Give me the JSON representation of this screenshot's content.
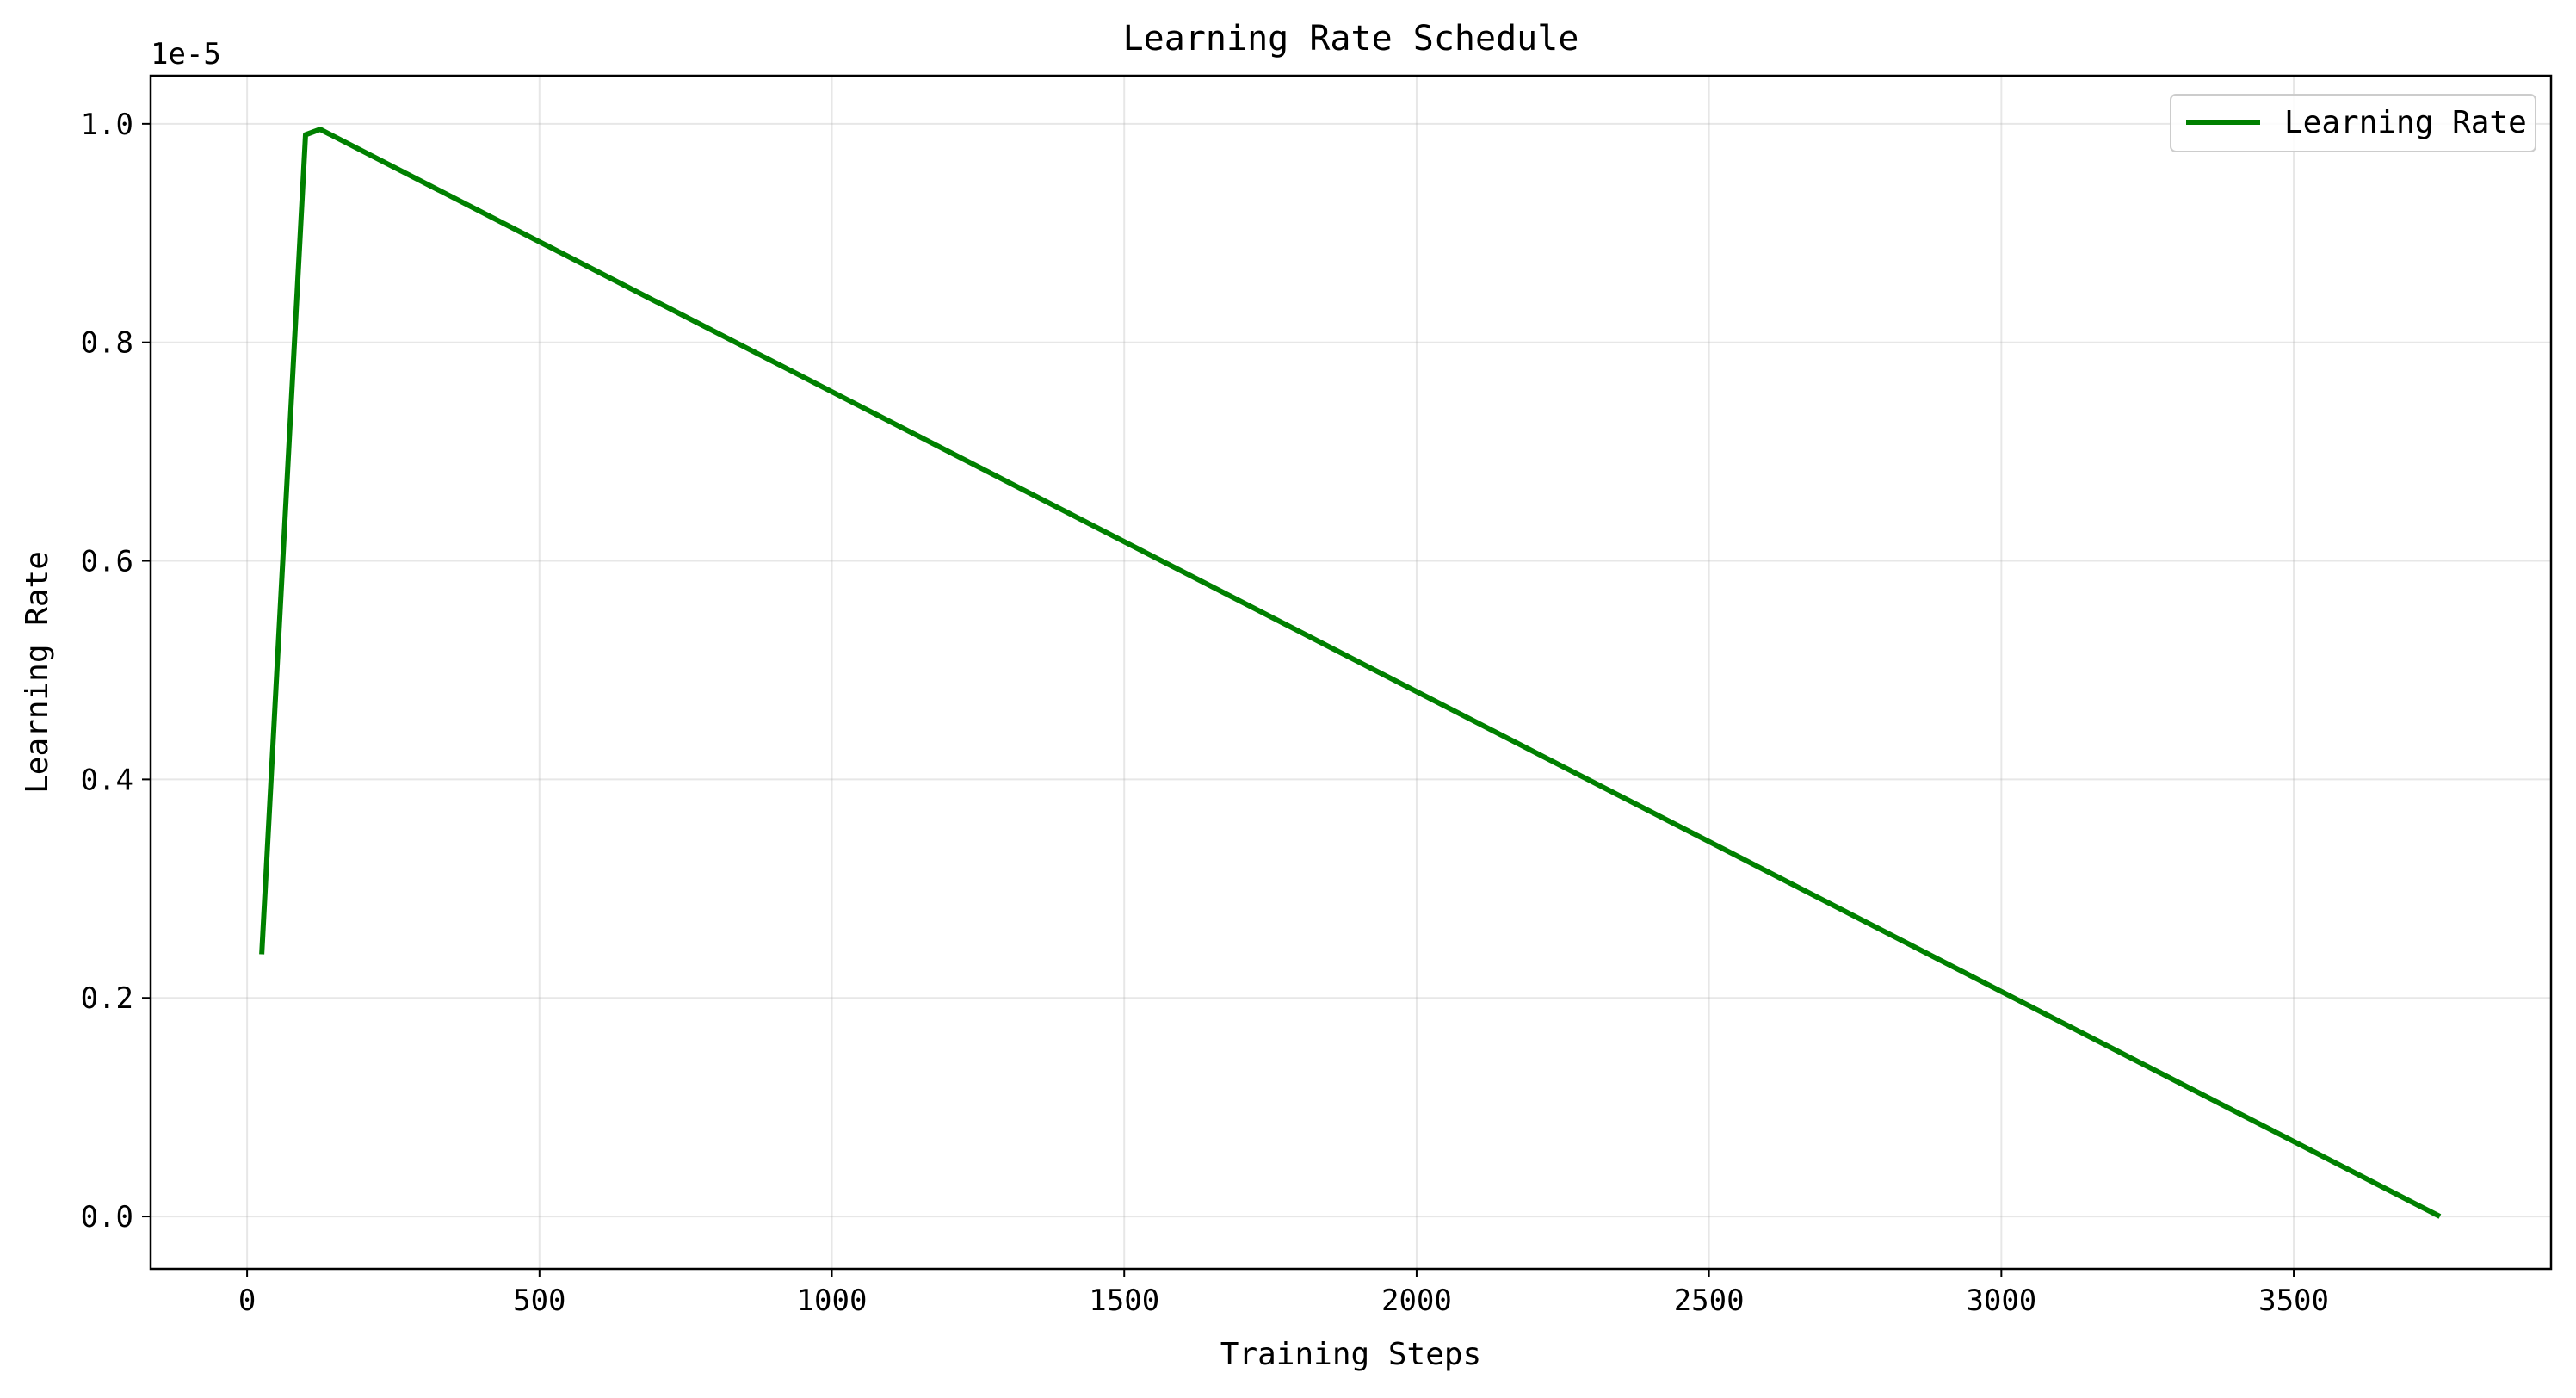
{
  "chart_data": {
    "type": "line",
    "title": "Learning Rate Schedule",
    "xlabel": "Training Steps",
    "ylabel": "Learning Rate",
    "y_offset_label": "1e-5",
    "xlim": [
      -165,
      3940
    ],
    "ylim": [
      -0.048,
      1.044
    ],
    "x_ticks": [
      0,
      500,
      1000,
      1500,
      2000,
      2500,
      3000,
      3500
    ],
    "x_tick_labels": [
      "0",
      "500",
      "1000",
      "1500",
      "2000",
      "2500",
      "3000",
      "3500"
    ],
    "y_ticks": [
      0.0,
      0.2,
      0.4,
      0.6,
      0.8,
      1.0
    ],
    "y_tick_labels": [
      "0.0",
      "0.2",
      "0.4",
      "0.6",
      "0.8",
      "1.0"
    ],
    "grid": true,
    "legend_position": "top-right",
    "series": [
      {
        "name": "Learning Rate",
        "color": "#008000",
        "x": [
          25,
          100,
          125,
          3750
        ],
        "y": [
          0.24,
          0.99,
          0.995,
          0.0
        ]
      }
    ]
  }
}
